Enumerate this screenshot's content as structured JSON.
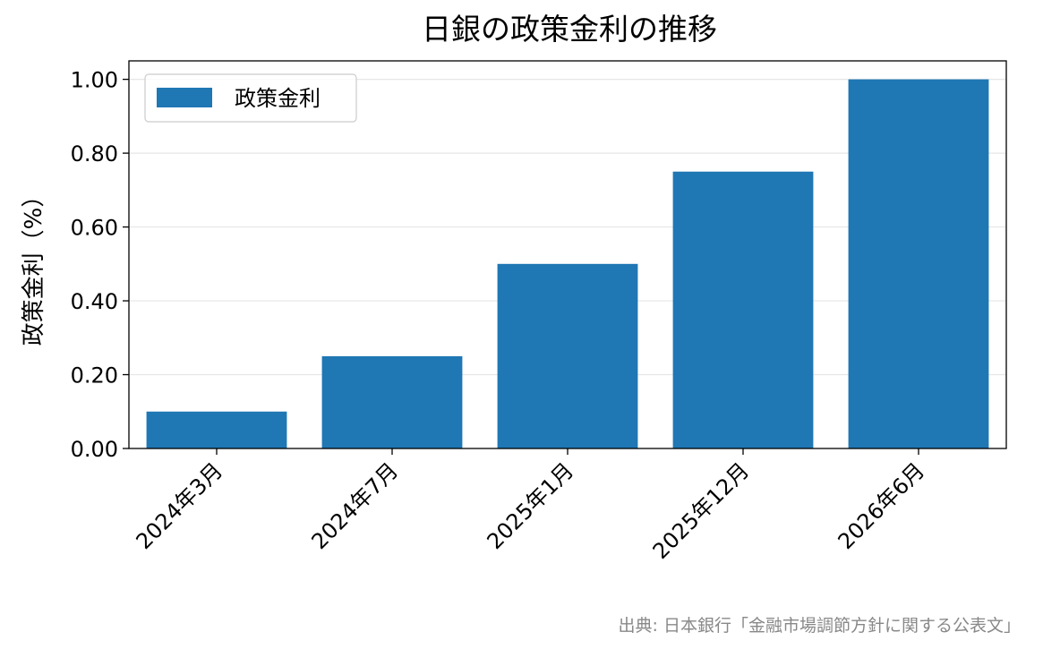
{
  "chart_data": {
    "type": "bar",
    "title": "日銀の政策金利の推移",
    "ylabel": "政策金利（%）",
    "xlabel": "",
    "categories": [
      "2024年3月",
      "2024年7月",
      "2025年1月",
      "2025年12月",
      "2026年6月"
    ],
    "series": [
      {
        "name": "政策金利",
        "values": [
          0.1,
          0.25,
          0.5,
          0.75,
          1.0
        ]
      }
    ],
    "ylim": [
      0,
      1.05
    ],
    "yticks": [
      "0.00",
      "0.20",
      "0.40",
      "0.60",
      "0.80",
      "1.00"
    ],
    "grid": "y",
    "legend": "top-left",
    "bar_color": "#1f77b4",
    "source": "出典: 日本銀行「金融市場調節方針に関する公表文」"
  }
}
